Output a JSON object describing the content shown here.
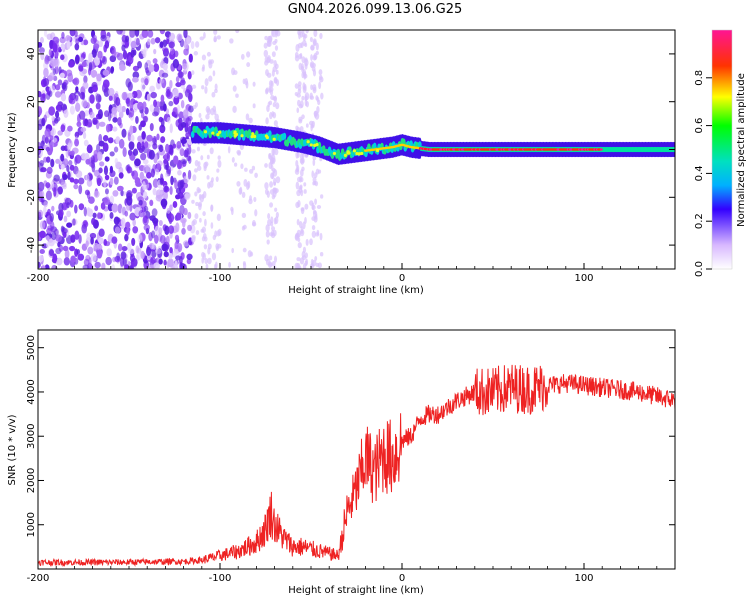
{
  "title": "GN04.2026.099.13.06.G25",
  "chart_data": [
    {
      "type": "heatmap",
      "title": "GN04.2026.099.13.06.G25",
      "xlabel": "Height of straight line (km)",
      "ylabel": "Frequency (Hz)",
      "xlim": [
        -200,
        150
      ],
      "ylim": [
        -50,
        50
      ],
      "xticks": [
        "-200",
        "-100",
        "0",
        "100"
      ],
      "yticks": [
        "-40",
        "-20",
        "0",
        "20",
        "40"
      ],
      "colorbar": {
        "label": "Normalized spectral amplitude",
        "range": [
          0,
          1
        ],
        "ticks": [
          "0.0",
          "0.2",
          "0.4",
          "0.6",
          "0.8"
        ]
      },
      "signal_ridge": {
        "height_km": [
          -115,
          -100,
          -85,
          -70,
          -55,
          -45,
          -35,
          -25,
          -15,
          -5,
          0,
          5,
          15,
          50,
          100,
          150
        ],
        "frequency_hz": [
          7,
          7,
          6,
          5,
          3,
          1,
          -2,
          -1,
          0,
          1,
          2,
          1,
          0,
          0,
          0,
          0
        ]
      }
    },
    {
      "type": "line",
      "xlabel": "Height of straight line (km)",
      "ylabel": "SNR (10 * v/v)",
      "xlim": [
        -200,
        150
      ],
      "ylim": [
        0,
        5400
      ],
      "xticks": [
        "-200",
        "-100",
        "0",
        "100"
      ],
      "yticks": [
        "1000",
        "2000",
        "3000",
        "4000",
        "5000"
      ],
      "color": "#ee2222",
      "series": [
        {
          "name": "SNR",
          "x": [
            -200,
            -180,
            -160,
            -140,
            -120,
            -110,
            -100,
            -90,
            -80,
            -75,
            -72,
            -70,
            -65,
            -60,
            -55,
            -50,
            -45,
            -40,
            -35,
            -30,
            -25,
            -20,
            -15,
            -10,
            -5,
            0,
            5,
            10,
            15,
            20,
            30,
            40,
            50,
            60,
            70,
            80,
            90,
            100,
            110,
            120,
            130,
            140,
            150
          ],
          "values": [
            150,
            150,
            150,
            160,
            170,
            200,
            300,
            400,
            600,
            900,
            1300,
            1000,
            700,
            500,
            500,
            450,
            400,
            350,
            300,
            1300,
            1800,
            2500,
            2200,
            2600,
            2500,
            2900,
            3000,
            3400,
            3500,
            3500,
            3800,
            4000,
            4000,
            4100,
            4050,
            4150,
            4200,
            4150,
            4100,
            4050,
            4000,
            3900,
            3800
          ]
        }
      ]
    }
  ]
}
